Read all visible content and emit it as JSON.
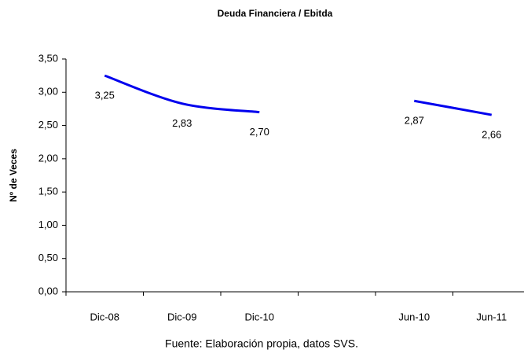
{
  "chart_data": {
    "type": "line",
    "title": "Deuda Financiera / Ebitda",
    "y_label": "Nº de Veces",
    "source": "Fuente: Elaboración propia, datos SVS.",
    "categories": [
      "Dic-08",
      "Dic-09",
      "Dic-10",
      null,
      "Jun-10",
      "Jun-11"
    ],
    "series": [
      {
        "name": "Deuda Financiera / Ebitda",
        "color": "#0000ee",
        "values": [
          3.25,
          2.83,
          2.7,
          null,
          2.87,
          2.66
        ],
        "value_labels": [
          "3,25",
          "2,83",
          "2,70",
          null,
          "2,87",
          "2,66"
        ]
      }
    ],
    "ylim": [
      0,
      3.5
    ],
    "yticks": [
      {
        "value": 0,
        "label": "0,00"
      },
      {
        "value": 0.5,
        "label": "0,50"
      },
      {
        "value": 1,
        "label": "1,00"
      },
      {
        "value": 1.5,
        "label": "1,50"
      },
      {
        "value": 2,
        "label": "2,00"
      },
      {
        "value": 2.5,
        "label": "2,50"
      },
      {
        "value": 3,
        "label": "3,00"
      },
      {
        "value": 3.5,
        "label": "3,50"
      }
    ],
    "grid": false,
    "legend": false
  }
}
